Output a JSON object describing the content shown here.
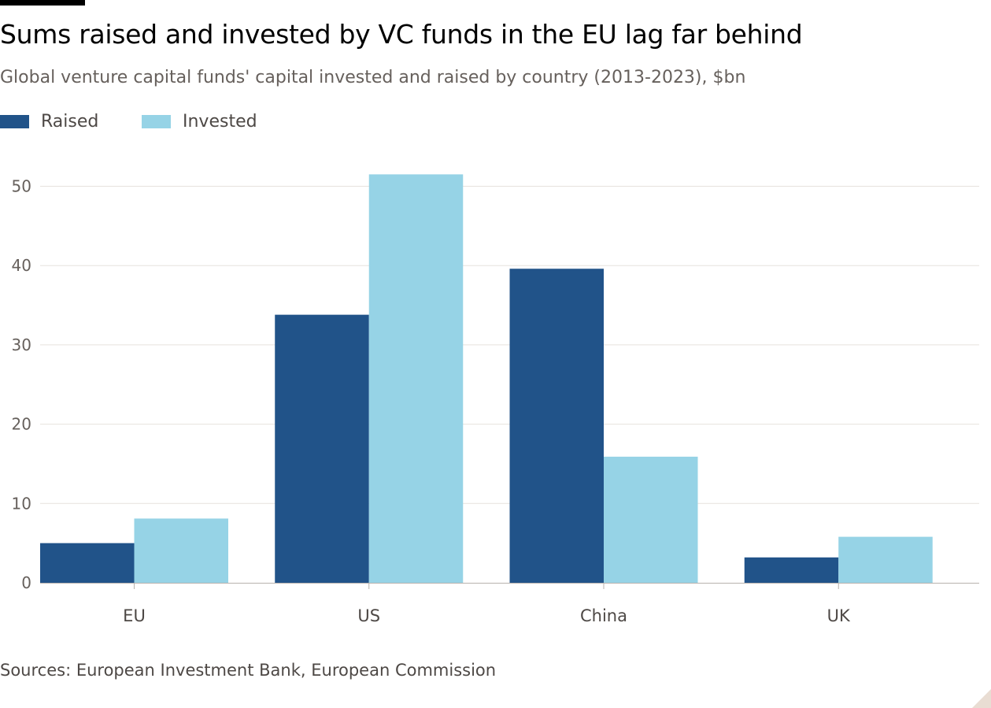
{
  "header": {
    "title": "Sums raised and invested by VC funds in the EU lag far behind",
    "subtitle": "Global venture capital funds' capital invested and raised by country (2013-2023), $bn"
  },
  "legend": [
    {
      "name": "Raised",
      "color": "#215389"
    },
    {
      "name": "Invested",
      "color": "#96d3e6"
    }
  ],
  "chart_data": {
    "type": "bar",
    "categories": [
      "EU",
      "US",
      "China",
      "UK"
    ],
    "series": [
      {
        "name": "Raised",
        "color": "#215389",
        "values": [
          5.0,
          33.8,
          39.6,
          3.2
        ]
      },
      {
        "name": "Invested",
        "color": "#96d3e6",
        "values": [
          8.1,
          51.5,
          15.9,
          5.8
        ]
      }
    ],
    "yticks": [
      0,
      10,
      20,
      30,
      40,
      50
    ],
    "ylim": [
      0,
      55
    ],
    "grid": true,
    "legend_position": "top-left"
  },
  "footer": {
    "source": "Sources: European Investment Bank, European Commission"
  },
  "colors": {
    "gridline": "#e6e2de",
    "axis": "#b8b2ad",
    "tick_text": "#66605c",
    "corner_mark": "#e9ddd3"
  }
}
